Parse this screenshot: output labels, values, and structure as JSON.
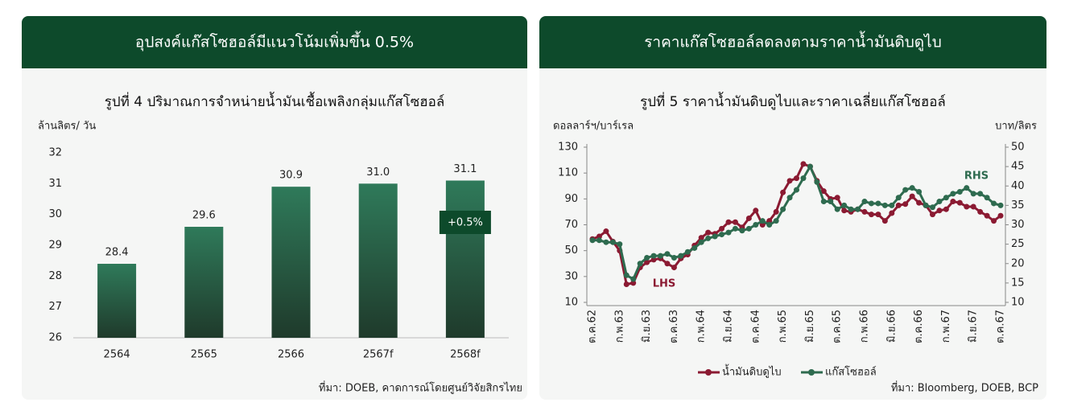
{
  "headers": [
    "อุปสงค์แก๊สโซฮอล์มีแนวโน้มเพิ่มขึ้น 0.5%",
    "ราคาแก๊สโซฮอล์ลดลงตามราคาน้ำมันดิบดูไบ"
  ],
  "chart_data": [
    {
      "type": "bar",
      "title": "รูปที่ 4 ปริมาณการจำหน่ายน้ำมันเชื้อเพลิงกลุ่มแก๊สโซฮอล์",
      "y_label": "ล้านลิตร/ วัน",
      "categories": [
        "2564",
        "2565",
        "2566",
        "2567f",
        "2568f"
      ],
      "values": [
        28.4,
        29.6,
        30.9,
        31.0,
        31.1
      ],
      "value_labels": [
        "28.4",
        "29.6",
        "30.9",
        "31.0",
        "31.1"
      ],
      "color": "#2f7a5a",
      "ylim": [
        26,
        32
      ],
      "yticks": [
        26,
        27,
        28,
        29,
        30,
        31,
        32
      ],
      "grid": false,
      "annotations": [
        "+0.5%"
      ],
      "source": "ที่มา: DOEB, คาดการณ์โดยศูนย์วิจัยสิกรไทย"
    },
    {
      "type": "line",
      "title": "รูปที่ 5 ราคาน้ำมันดิบดูไบและราคาเฉลี่ยแก๊สโซฮอล์",
      "y_label": "ดอลลาร์ฯ/บาร์เรล",
      "y2_label": "บาท/ลิตร",
      "categories": [
        "ต.ค.62",
        null,
        null,
        null,
        "ก.พ.63",
        null,
        null,
        null,
        "มิ.ย.63",
        null,
        null,
        null,
        "ต.ค.63",
        null,
        null,
        null,
        "ก.พ.64",
        null,
        null,
        null,
        "มิ.ย.64",
        null,
        null,
        null,
        "ต.ค.64",
        null,
        null,
        null,
        "ก.พ.65",
        null,
        null,
        null,
        "มิ.ย.65",
        null,
        null,
        null,
        "ต.ค.65",
        null,
        null,
        null,
        "ก.พ.66",
        null,
        null,
        null,
        "มิ.ย.66",
        null,
        null,
        null,
        "ต.ค.66",
        null,
        null,
        null,
        "ก.พ.67",
        null,
        null,
        null,
        "มิ.ย.67",
        null,
        null,
        null,
        "ต.ค.67"
      ],
      "series": [
        {
          "name": "น้ำมันดิบดูไบ",
          "color": "#8b1a32",
          "values": [
            59,
            61,
            65,
            57,
            50,
            24,
            25,
            37,
            41,
            43,
            44,
            40,
            37,
            44,
            47,
            54,
            60,
            64,
            63,
            67,
            72,
            72,
            68,
            75,
            81,
            70,
            73,
            80,
            95,
            104,
            106,
            117,
            115,
            104,
            96,
            90,
            91,
            81,
            80,
            82,
            80,
            78,
            78,
            73,
            79,
            85,
            86,
            92,
            87,
            85,
            78,
            81,
            82,
            88,
            87,
            84,
            84,
            80,
            77,
            73,
            77
          ]
        },
        {
          "name": "แก๊สโซฮอล์",
          "color": "#2e6b4f",
          "axis": "y2",
          "values": [
            26,
            26,
            25.5,
            25.5,
            25,
            17,
            16,
            20,
            21.5,
            22,
            22,
            22.5,
            21.5,
            22,
            23,
            24,
            25.5,
            26.5,
            27,
            27.5,
            28,
            29,
            28.5,
            29,
            30,
            31,
            30,
            31,
            34,
            37,
            39,
            42,
            45,
            41,
            36,
            36,
            34,
            35,
            34,
            34,
            36,
            35.5,
            35.5,
            35,
            35,
            37,
            39,
            39.5,
            38.5,
            35,
            34.5,
            36,
            37,
            38,
            38.5,
            39.5,
            38,
            38,
            37,
            35.5,
            35
          ]
        }
      ],
      "ylim": [
        10,
        130
      ],
      "yticks": [
        10,
        30,
        50,
        70,
        90,
        110,
        130
      ],
      "y2lim": [
        10,
        50
      ],
      "y2ticks": [
        10,
        15,
        20,
        25,
        30,
        35,
        40,
        45,
        50
      ],
      "grid": false,
      "annotations": [
        "LHS",
        "RHS"
      ],
      "source": "ที่มา: Bloomberg, DOEB, BCP"
    }
  ]
}
